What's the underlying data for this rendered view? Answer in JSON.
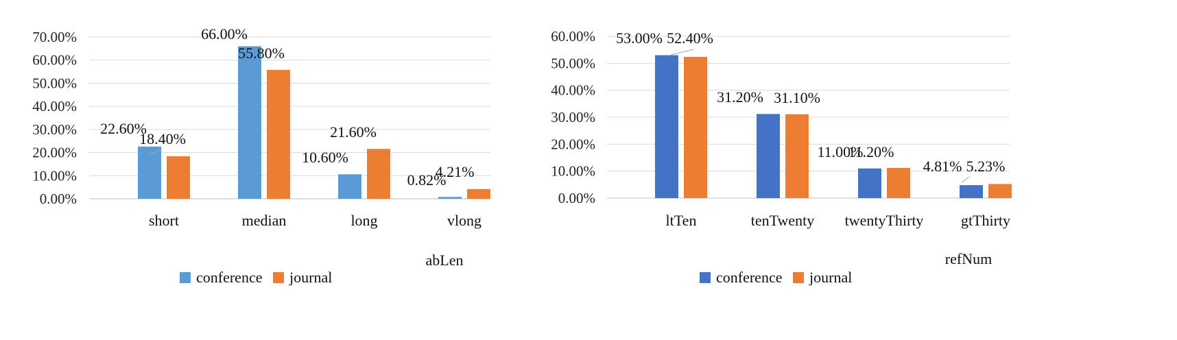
{
  "chart_data": [
    {
      "type": "bar",
      "categories": [
        "short",
        "median",
        "long",
        "vlong"
      ],
      "series": [
        {
          "name": "conference",
          "values": [
            22.6,
            66.0,
            10.6,
            0.82
          ],
          "labels": [
            "22.60%",
            "66.00%",
            "10.60%",
            "0.82%"
          ],
          "color": "#5b9bd5"
        },
        {
          "name": "journal",
          "values": [
            18.4,
            55.8,
            21.6,
            4.21
          ],
          "labels": [
            "18.40%",
            "55.80%",
            "21.60%",
            "4.21%"
          ],
          "color": "#ed7d31"
        }
      ],
      "ylim": [
        0,
        70
      ],
      "yticks": [
        "0.00%",
        "10.00%",
        "20.00%",
        "30.00%",
        "40.00%",
        "50.00%",
        "60.00%",
        "70.00%"
      ],
      "xlabel": "abLen",
      "grid": true,
      "legend": "bottom"
    },
    {
      "type": "bar",
      "categories": [
        "ltTen",
        "tenTwenty",
        "twentyThirty",
        "gtThirty"
      ],
      "series": [
        {
          "name": "conference",
          "values": [
            53.0,
            31.2,
            11.0,
            4.81
          ],
          "labels": [
            "53.00%",
            "31.20%",
            "11.00%",
            "4.81%"
          ],
          "color": "#4472c4"
        },
        {
          "name": "journal",
          "values": [
            52.4,
            31.1,
            11.2,
            5.23
          ],
          "labels": [
            "52.40%",
            "31.10%",
            "11.20%",
            "5.23%"
          ],
          "color": "#ed7d31"
        }
      ],
      "ylim": [
        0,
        60
      ],
      "yticks": [
        "0.00%",
        "10.00%",
        "20.00%",
        "30.00%",
        "40.00%",
        "50.00%",
        "60.00%"
      ],
      "xlabel": "refNum",
      "grid": true,
      "legend": "bottom"
    }
  ]
}
